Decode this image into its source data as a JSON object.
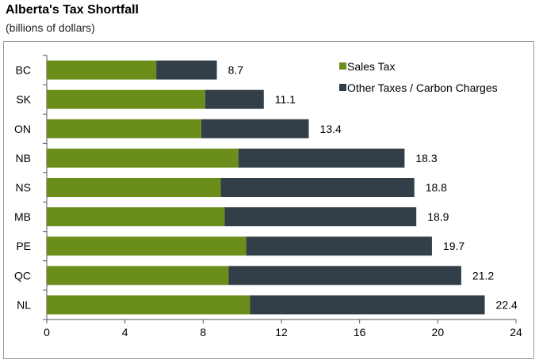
{
  "chart_data": {
    "type": "bar",
    "orientation": "horizontal",
    "stacked": true,
    "title": "Alberta's Tax Shortfall",
    "subtitle": "(billions of dollars)",
    "categories": [
      "BC",
      "SK",
      "ON",
      "NB",
      "NS",
      "MB",
      "PE",
      "QC",
      "NL"
    ],
    "series": [
      {
        "name": "Sales Tax",
        "color": "#6b8e1a",
        "values": [
          5.6,
          8.1,
          7.9,
          9.8,
          8.9,
          9.1,
          10.2,
          9.3,
          10.4
        ]
      },
      {
        "name": "Other Taxes / Carbon Charges",
        "color": "#333f48",
        "values": [
          3.1,
          3.0,
          5.5,
          8.5,
          9.9,
          9.8,
          9.5,
          11.9,
          12.0
        ]
      }
    ],
    "totals": [
      "8.7",
      "11.1",
      "13.4",
      "18.3",
      "18.8",
      "18.9",
      "19.7",
      "21.2",
      "22.4"
    ],
    "xlim": [
      0,
      24
    ],
    "xticks": [
      0,
      4,
      8,
      12,
      16,
      20,
      24
    ],
    "grid": false,
    "legend_position": "top-right"
  }
}
